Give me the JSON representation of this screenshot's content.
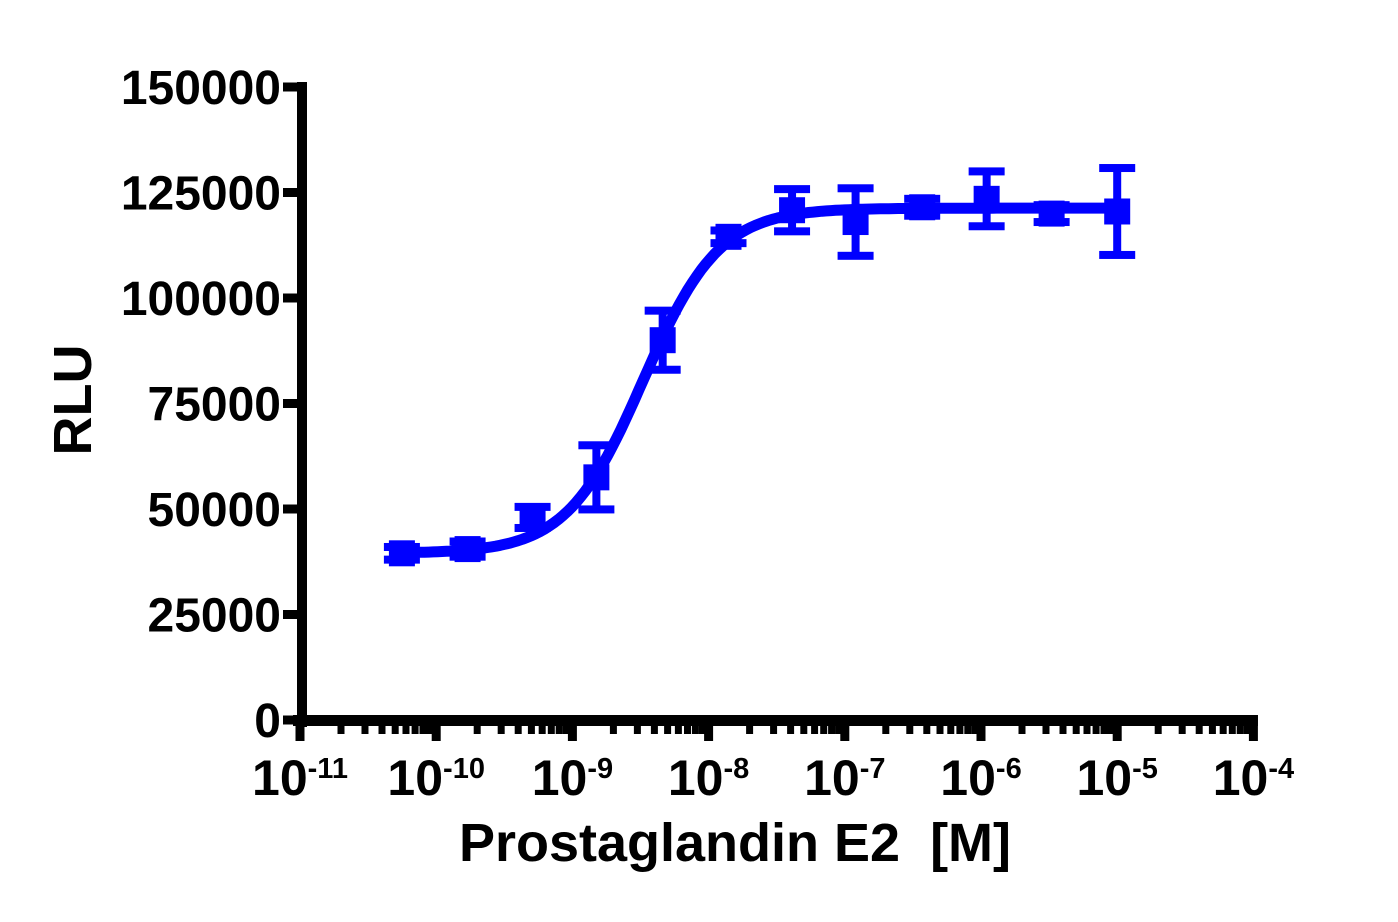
{
  "chart_data": {
    "type": "scatter",
    "title": "",
    "xlabel": "Prostaglandin E2  [M]",
    "ylabel": "RLU",
    "x_scale": "log10",
    "xlim_log10": [
      -11,
      -4
    ],
    "ylim": [
      0,
      150000
    ],
    "grid": false,
    "legend": "none",
    "x_tick_base": "10",
    "x_tick_exponents": [
      "-11",
      "-10",
      "-9",
      "-8",
      "-7",
      "-6",
      "-5",
      "-4"
    ],
    "y_ticks": [
      0,
      25000,
      50000,
      75000,
      100000,
      125000,
      150000
    ],
    "y_tick_labels": [
      "0",
      "25000",
      "50000",
      "75000",
      "100000",
      "125000",
      "150000"
    ],
    "axis_color": "#000000",
    "background": "#ffffff",
    "series": [
      {
        "name": "Prostaglandin E2",
        "marker": "square",
        "color": "#0000ff",
        "x_molar": [
          5.6e-11,
          1.7e-10,
          5.1e-10,
          1.5e-09,
          4.6e-09,
          1.4e-08,
          4.1e-08,
          1.2e-07,
          3.7e-07,
          1.1e-06,
          3.3e-06,
          1e-05
        ],
        "y_rlu": [
          39500,
          40500,
          48000,
          57500,
          90000,
          114500,
          120800,
          118000,
          121500,
          123500,
          120000,
          120500
        ],
        "y_error": [
          1500,
          1800,
          2500,
          7600,
          7000,
          1500,
          5000,
          8000,
          2000,
          6500,
          2000,
          10300
        ]
      }
    ],
    "fit_curve": {
      "model": "4PL sigmoidal dose-response",
      "bottom": 39500,
      "top": 121300,
      "ec50_molar": 3.3e-09,
      "hill": 1.55
    }
  }
}
